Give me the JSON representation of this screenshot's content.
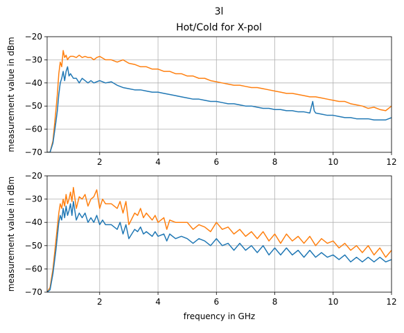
{
  "figure": {
    "title_line1": "3l",
    "title_line2": "Hot/Cold for X-pol"
  },
  "colors": {
    "series_hot": "#ff7f0e",
    "series_cold": "#1f77b4",
    "grid": "#b0b0b0",
    "axes": "#000000"
  },
  "chart_data": [
    {
      "type": "line",
      "title": "3l / Hot/Cold for X-pol",
      "xlabel": "",
      "ylabel": "measurement value in dBm",
      "xlim": [
        0.2,
        12
      ],
      "ylim": [
        -70,
        -20
      ],
      "xticks": [
        2,
        4,
        6,
        8,
        10,
        12
      ],
      "yticks": [
        -70,
        -60,
        -50,
        -40,
        -30,
        -20
      ],
      "xtick_labels": [
        "2",
        "4",
        "6",
        "8",
        "10",
        "12"
      ],
      "ytick_labels": [
        "−70",
        "−60",
        "−50",
        "−40",
        "−30",
        "−20"
      ],
      "grid": true,
      "series": [
        {
          "color": "#ff7f0e",
          "x": [
            0.2,
            0.3,
            0.4,
            0.5,
            0.55,
            0.6,
            0.65,
            0.7,
            0.75,
            0.8,
            0.85,
            0.9,
            0.95,
            1.0,
            1.1,
            1.2,
            1.3,
            1.4,
            1.5,
            1.6,
            1.7,
            1.8,
            1.9,
            2.0,
            2.2,
            2.4,
            2.6,
            2.8,
            3.0,
            3.2,
            3.4,
            3.6,
            3.8,
            4.0,
            4.2,
            4.4,
            4.6,
            4.8,
            5.0,
            5.2,
            5.4,
            5.6,
            5.8,
            6.0,
            6.2,
            6.4,
            6.6,
            6.8,
            7.0,
            7.2,
            7.4,
            7.6,
            7.8,
            8.0,
            8.2,
            8.4,
            8.6,
            8.8,
            9.0,
            9.2,
            9.4,
            9.6,
            9.8,
            10.0,
            10.2,
            10.4,
            10.6,
            10.8,
            11.0,
            11.2,
            11.4,
            11.6,
            11.8,
            12.0
          ],
          "y": [
            -70,
            -70,
            -65,
            -52,
            -45,
            -36,
            -31,
            -33,
            -26,
            -29,
            -28,
            -30,
            -29,
            -28.5,
            -28.5,
            -29,
            -28,
            -29,
            -28.5,
            -29,
            -29,
            -30,
            -29,
            -28.5,
            -30,
            -30,
            -31,
            -30,
            -31.5,
            -32,
            -33,
            -33,
            -34,
            -34,
            -35,
            -35,
            -36,
            -36,
            -37,
            -37,
            -38,
            -38,
            -39,
            -39.5,
            -40,
            -40.5,
            -41,
            -41,
            -41.5,
            -42,
            -42,
            -42.5,
            -43,
            -43.5,
            -44,
            -44.5,
            -44.5,
            -45,
            -45.5,
            -46,
            -46,
            -46.5,
            -47,
            -47.5,
            -48,
            -48,
            -49,
            -49.5,
            -50,
            -51,
            -50.5,
            -51.5,
            -52,
            -50
          ]
        },
        {
          "color": "#1f77b4",
          "x": [
            0.2,
            0.3,
            0.4,
            0.5,
            0.55,
            0.6,
            0.65,
            0.7,
            0.75,
            0.8,
            0.85,
            0.9,
            0.95,
            1.0,
            1.1,
            1.2,
            1.3,
            1.4,
            1.5,
            1.6,
            1.7,
            1.8,
            1.9,
            2.0,
            2.2,
            2.4,
            2.6,
            2.8,
            3.0,
            3.2,
            3.4,
            3.6,
            3.8,
            4.0,
            4.2,
            4.4,
            4.6,
            4.8,
            5.0,
            5.2,
            5.4,
            5.6,
            5.8,
            6.0,
            6.2,
            6.4,
            6.6,
            6.8,
            7.0,
            7.2,
            7.4,
            7.6,
            7.8,
            8.0,
            8.2,
            8.4,
            8.6,
            8.8,
            9.0,
            9.2,
            9.3,
            9.35,
            9.4,
            9.6,
            9.8,
            10.0,
            10.2,
            10.4,
            10.6,
            10.8,
            11.0,
            11.2,
            11.4,
            11.6,
            11.8,
            12.0
          ],
          "y": [
            -70,
            -70,
            -66,
            -57,
            -52,
            -45,
            -40,
            -38,
            -35,
            -39,
            -35,
            -33,
            -37,
            -36,
            -38,
            -38,
            -40,
            -38,
            -39,
            -40,
            -39,
            -40,
            -39.5,
            -39,
            -40,
            -39.5,
            -41,
            -42,
            -42.5,
            -43,
            -43,
            -43.5,
            -44,
            -44,
            -44.5,
            -45,
            -45.5,
            -46,
            -46.5,
            -47,
            -47,
            -47.5,
            -48,
            -48,
            -48.5,
            -49,
            -49,
            -49.5,
            -50,
            -50,
            -50.5,
            -51,
            -51,
            -51.5,
            -51.5,
            -52,
            -52,
            -52.5,
            -52.5,
            -53,
            -48,
            -52,
            -53,
            -53.5,
            -54,
            -54,
            -54.5,
            -55,
            -55,
            -55.5,
            -55.5,
            -55.5,
            -56,
            -56,
            -56,
            -55
          ]
        }
      ]
    },
    {
      "type": "line",
      "title": "",
      "xlabel": "frequency in GHz",
      "ylabel": "measurement value in dBm",
      "xlim": [
        0.2,
        12
      ],
      "ylim": [
        -70,
        -20
      ],
      "xticks": [
        2,
        4,
        6,
        8,
        10,
        12
      ],
      "yticks": [
        -70,
        -60,
        -50,
        -40,
        -30,
        -20
      ],
      "xtick_labels": [
        "2",
        "4",
        "6",
        "8",
        "10",
        "12"
      ],
      "ytick_labels": [
        "−70",
        "−60",
        "−50",
        "−40",
        "−30",
        "−20"
      ],
      "grid": true,
      "series": [
        {
          "color": "#ff7f0e",
          "x": [
            0.2,
            0.3,
            0.4,
            0.5,
            0.55,
            0.6,
            0.65,
            0.7,
            0.75,
            0.8,
            0.85,
            0.9,
            0.95,
            1.0,
            1.05,
            1.1,
            1.2,
            1.3,
            1.4,
            1.5,
            1.6,
            1.7,
            1.8,
            1.9,
            2.0,
            2.1,
            2.2,
            2.4,
            2.6,
            2.7,
            2.8,
            2.9,
            3.0,
            3.2,
            3.3,
            3.4,
            3.5,
            3.6,
            3.8,
            3.9,
            4.0,
            4.2,
            4.3,
            4.4,
            4.6,
            4.8,
            5.0,
            5.2,
            5.4,
            5.6,
            5.8,
            6.0,
            6.2,
            6.4,
            6.6,
            6.8,
            7.0,
            7.2,
            7.4,
            7.6,
            7.8,
            8.0,
            8.2,
            8.4,
            8.6,
            8.8,
            9.0,
            9.2,
            9.4,
            9.6,
            9.8,
            10.0,
            10.2,
            10.4,
            10.6,
            10.8,
            11.0,
            11.2,
            11.4,
            11.6,
            11.8,
            12.0
          ],
          "y": [
            -70,
            -68,
            -60,
            -48,
            -42,
            -36,
            -32,
            -34,
            -30,
            -33,
            -28,
            -32,
            -30,
            -27,
            -31,
            -25,
            -34,
            -29,
            -30,
            -28,
            -33,
            -30,
            -29,
            -26,
            -34,
            -30,
            -32,
            -32,
            -34,
            -31,
            -36,
            -31,
            -41,
            -36,
            -37,
            -34,
            -38,
            -36,
            -39,
            -37,
            -40,
            -38,
            -43,
            -39,
            -40,
            -40,
            -40,
            -43,
            -41,
            -42,
            -44,
            -40,
            -43,
            -42,
            -45,
            -43,
            -46,
            -44,
            -47,
            -44,
            -48,
            -45,
            -49,
            -45,
            -48,
            -46,
            -49,
            -46,
            -50,
            -47,
            -49,
            -48,
            -51,
            -49,
            -52,
            -50,
            -53,
            -50,
            -54,
            -51,
            -55,
            -52
          ]
        },
        {
          "color": "#1f77b4",
          "x": [
            0.2,
            0.3,
            0.4,
            0.5,
            0.55,
            0.6,
            0.65,
            0.7,
            0.75,
            0.8,
            0.85,
            0.9,
            0.95,
            1.0,
            1.05,
            1.1,
            1.2,
            1.3,
            1.4,
            1.5,
            1.6,
            1.7,
            1.8,
            1.9,
            2.0,
            2.1,
            2.2,
            2.4,
            2.6,
            2.7,
            2.8,
            2.9,
            3.0,
            3.2,
            3.3,
            3.4,
            3.5,
            3.6,
            3.8,
            3.9,
            4.0,
            4.2,
            4.3,
            4.4,
            4.6,
            4.8,
            5.0,
            5.2,
            5.4,
            5.6,
            5.8,
            6.0,
            6.2,
            6.4,
            6.6,
            6.8,
            7.0,
            7.2,
            7.4,
            7.6,
            7.8,
            8.0,
            8.2,
            8.4,
            8.6,
            8.8,
            9.0,
            9.2,
            9.4,
            9.6,
            9.8,
            10.0,
            10.2,
            10.4,
            10.6,
            10.8,
            11.0,
            11.2,
            11.4,
            11.6,
            11.8,
            12.0
          ],
          "y": [
            -70,
            -69,
            -62,
            -52,
            -46,
            -40,
            -37,
            -39,
            -34,
            -38,
            -33,
            -37,
            -35,
            -32,
            -37,
            -31,
            -39,
            -36,
            -38,
            -36,
            -40,
            -38,
            -40,
            -37,
            -41,
            -39,
            -41,
            -41,
            -43,
            -40,
            -45,
            -41,
            -47,
            -43,
            -44,
            -42,
            -45,
            -44,
            -46,
            -44,
            -46,
            -45,
            -48,
            -45,
            -47,
            -46,
            -47,
            -49,
            -47,
            -48,
            -50,
            -47,
            -50,
            -49,
            -52,
            -49,
            -52,
            -50,
            -53,
            -50,
            -54,
            -51,
            -54,
            -51,
            -54,
            -52,
            -55,
            -52,
            -55,
            -53,
            -55,
            -54,
            -56,
            -54,
            -57,
            -55,
            -57,
            -55,
            -57,
            -55,
            -57,
            -56
          ]
        }
      ]
    }
  ]
}
